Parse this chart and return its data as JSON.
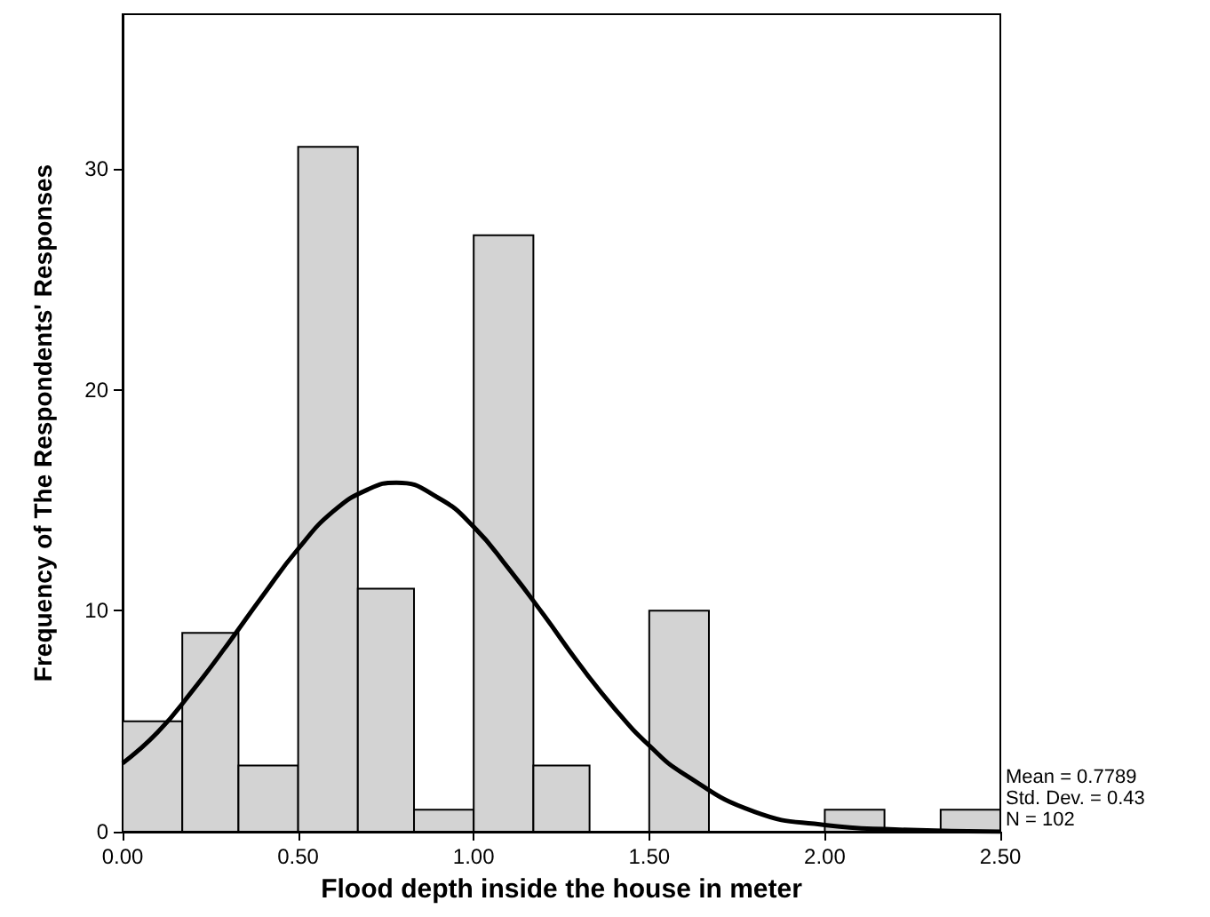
{
  "chart_data": {
    "type": "histogram",
    "xlabel": "Flood depth inside the house in meter",
    "ylabel": "Frequency of The Respondents' Responses",
    "bins": [
      0,
      0.17,
      0.33,
      0.5,
      0.67,
      0.83,
      1,
      1.17,
      1.33,
      1.5,
      1.67,
      2,
      2.17,
      2.33,
      2.5
    ],
    "values": [
      5,
      9,
      3,
      31,
      11,
      1,
      27,
      3,
      0,
      10,
      0,
      1,
      0,
      1
    ],
    "color": "#d3d3d3",
    "series": [
      {
        "type": "line",
        "color": "#000000",
        "x": [
          0,
          0.1,
          0.2,
          0.3,
          0.4,
          0.5,
          0.6,
          0.7,
          0.78,
          0.9,
          1.0,
          1.1,
          1.2,
          1.3,
          1.4,
          1.5,
          1.6,
          1.8,
          2.0,
          2.2,
          2.5
        ],
        "values": [
          3.1,
          4.5,
          6.4,
          8.5,
          10.7,
          12.8,
          14.5,
          15.5,
          15.8,
          15.1,
          13.8,
          11.9,
          9.8,
          7.6,
          5.6,
          3.9,
          2.6,
          0.9,
          0.3,
          0.1,
          0
        ]
      }
    ],
    "xlim": [
      0,
      2.5
    ],
    "xticks": [
      {
        "value": 0,
        "label": "0.00"
      },
      {
        "value": 0.5,
        "label": "0.50"
      },
      {
        "value": 1,
        "label": "1.00"
      },
      {
        "value": 1.5,
        "label": "1.50"
      },
      {
        "value": 2,
        "label": "2.00"
      },
      {
        "value": 2.5,
        "label": "2.50"
      }
    ],
    "ylim": [
      0,
      37
    ],
    "yticks": [
      0,
      10,
      20,
      30
    ],
    "grid": false,
    "annotations": [
      "Mean = 0.7789",
      "Std. Dev. = 0.43",
      "N = 102"
    ]
  }
}
